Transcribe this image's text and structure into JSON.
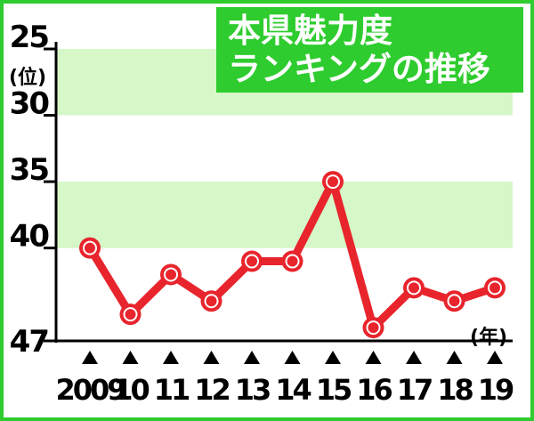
{
  "chart_data": {
    "type": "line",
    "title_lines": [
      "本県魅力度",
      "ランキングの推移"
    ],
    "y_unit": "(位)",
    "x_unit": "(年)",
    "x": [
      "2009",
      "10",
      "11",
      "12",
      "13",
      "14",
      "15",
      "16",
      "17",
      "18",
      "19"
    ],
    "series": [
      {
        "values": [
          40,
          45,
          42,
          44,
          41,
          41,
          35,
          46,
          43,
          44,
          43
        ]
      }
    ],
    "y_ticks": [
      25,
      30,
      35,
      40,
      47
    ],
    "ylim": [
      25,
      47
    ],
    "y_inverted": true,
    "bands": [
      [
        25,
        30
      ],
      [
        35,
        40
      ]
    ],
    "colors": {
      "line": "#e8242c",
      "band": "#d6f7c8",
      "title_bg": "#2ecc2e",
      "frame": "#2ecc2e"
    }
  }
}
